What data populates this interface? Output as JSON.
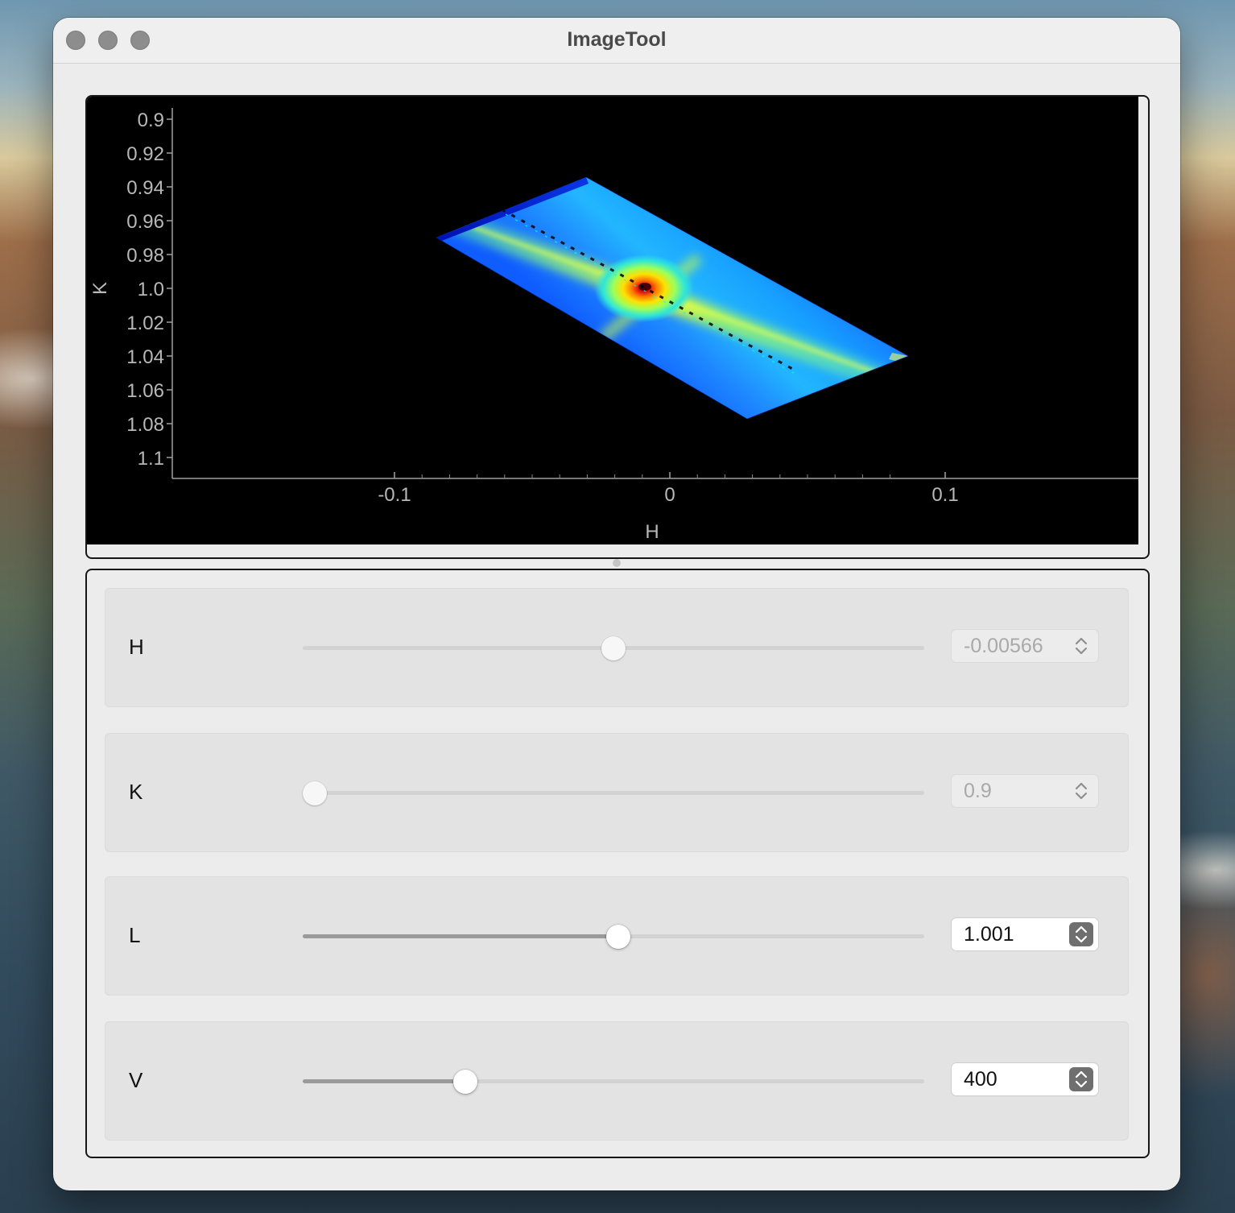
{
  "window": {
    "title": "ImageTool"
  },
  "plot": {
    "xlabel": "H",
    "ylabel": "K",
    "xticks": [
      "-0.1",
      "0",
      "0.1"
    ],
    "yticks": [
      "0.9",
      "0.92",
      "0.94",
      "0.96",
      "0.98",
      "1.0",
      "1.02",
      "1.04",
      "1.06",
      "1.08",
      "1.1"
    ],
    "colormap": "jet",
    "background": "#000000"
  },
  "controls": [
    {
      "label": "H",
      "value": "-0.00566",
      "position": 0.5,
      "enabled": false,
      "filled": false
    },
    {
      "label": "K",
      "value": "0.9",
      "position": 0.02,
      "enabled": false,
      "filled": false
    },
    {
      "label": "L",
      "value": "1.001",
      "position": 0.508,
      "enabled": true,
      "filled": true
    },
    {
      "label": "V",
      "value": "400",
      "position": 0.262,
      "enabled": true,
      "filled": true
    }
  ],
  "colors": {
    "window_bg": "#ececec",
    "plot_bg": "#000000",
    "frame_border": "#161616"
  }
}
